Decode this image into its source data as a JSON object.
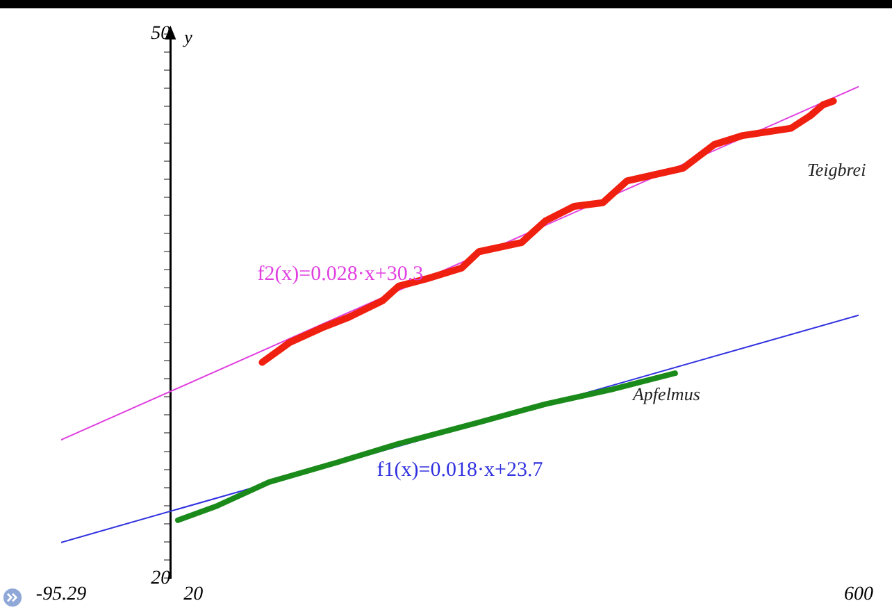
{
  "chart_data": {
    "type": "line",
    "ylabel": "y",
    "xlim": [
      -95.29,
      600
    ],
    "xticks": [
      -95.29,
      20,
      600
    ],
    "ylim": [
      20,
      50
    ],
    "yticks": [
      20,
      {
        "value": 21,
        "label": null
      },
      {
        "value": 22,
        "label": null
      },
      {
        "value": 23,
        "label": null
      },
      {
        "value": 24,
        "label": null
      },
      {
        "value": 25,
        "label": null
      },
      {
        "value": 26,
        "label": null
      },
      {
        "value": 27,
        "label": null
      },
      {
        "value": 28,
        "label": null
      },
      {
        "value": 29,
        "label": null
      },
      {
        "value": 30,
        "label": null
      },
      {
        "value": 31,
        "label": null
      },
      {
        "value": 32,
        "label": null
      },
      {
        "value": 33,
        "label": null
      },
      {
        "value": 34,
        "label": null
      },
      {
        "value": 35,
        "label": null
      },
      {
        "value": 36,
        "label": null
      },
      {
        "value": 37,
        "label": null
      },
      {
        "value": 38,
        "label": null
      },
      {
        "value": 39,
        "label": null
      },
      {
        "value": 40,
        "label": null
      },
      {
        "value": 41,
        "label": null
      },
      {
        "value": 42,
        "label": null
      },
      {
        "value": 43,
        "label": null
      },
      {
        "value": 44,
        "label": null
      },
      {
        "value": 45,
        "label": null
      },
      {
        "value": 46,
        "label": null
      },
      {
        "value": 47,
        "label": null
      },
      {
        "value": 48,
        "label": null
      },
      {
        "value": 49,
        "label": null
      },
      50
    ],
    "grid": false,
    "legend": false,
    "marker": "none",
    "line_style": "solid",
    "series": [
      {
        "name": "Teigbrei",
        "color": "#f02010",
        "x": [
          80,
          104,
          132,
          156,
          185,
          199,
          223,
          254,
          269,
          306,
          327,
          352,
          377,
          398,
          447,
          474,
          499,
          541,
          558,
          569,
          578
        ],
        "values": [
          31.9,
          33.0,
          33.8,
          34.4,
          35.3,
          36.1,
          36.5,
          37.1,
          38.0,
          38.5,
          39.7,
          40.5,
          40.7,
          41.9,
          42.6,
          43.9,
          44.4,
          44.8,
          45.5,
          46.1,
          46.3
        ]
      },
      {
        "name": "Apfelmus",
        "color": "#1a8a1a",
        "x": [
          6.5,
          41,
          86,
          146,
          198,
          269,
          327,
          384,
          440
        ],
        "values": [
          23.2,
          24.0,
          25.3,
          26.4,
          27.4,
          28.6,
          29.6,
          30.4,
          31.3
        ]
      },
      {
        "name": "f2(x)=0.028·x+30.3",
        "color": "#e040e0",
        "x": [
          -95.29,
          600
        ],
        "values": [
          27.63,
          47.1
        ]
      },
      {
        "name": "f1(x)=0.018·x+23.7",
        "color": "#3030e0",
        "x": [
          -95.29,
          600
        ],
        "values": [
          21.98,
          34.5
        ]
      }
    ]
  }
}
